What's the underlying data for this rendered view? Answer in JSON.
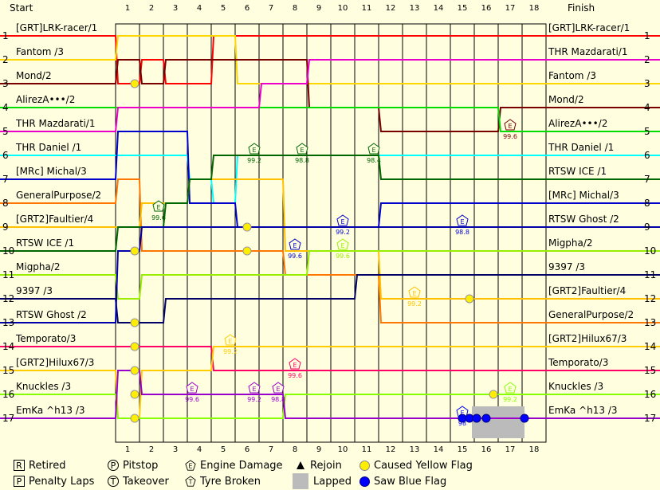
{
  "headers": {
    "start": "Start",
    "finish": "Finish"
  },
  "chart_data": {
    "type": "line",
    "x": [
      1,
      2,
      3,
      4,
      5,
      6,
      7,
      8,
      9,
      10,
      11,
      12,
      13,
      14,
      15,
      16,
      17,
      18
    ],
    "positions": [
      1,
      2,
      3,
      4,
      5,
      6,
      7,
      8,
      9,
      10,
      11,
      12,
      13,
      14,
      15,
      16,
      17
    ],
    "start_order": [
      "[GRT]LRK-racer/1",
      "Fantom /3",
      "Mond/2",
      "AlirezA•••/2",
      "THR Mazdarati/1",
      "THR Daniel /1",
      "[MRc] Michal/3",
      "GeneralPurpose/2",
      "[GRT2]Faultier/4",
      "RTSW ICE /1",
      "Migpha/2",
      "9397 /3",
      "RTSW Ghost /2",
      "Temporato/3",
      "[GRT2]Hilux67/3",
      "Knuckles /3",
      "EmKa ^h13 /3"
    ],
    "finish_order": [
      "[GRT]LRK-racer/1",
      "THR Mazdarati/1",
      "Fantom /3",
      "Mond/2",
      "AlirezA•••/2",
      "THR Daniel /1",
      "RTSW ICE /1",
      "[MRc] Michal/3",
      "RTSW Ghost /2",
      "Migpha/2",
      "9397 /3",
      "[GRT2]Faultier/4",
      "GeneralPurpose/2",
      "[GRT2]Hilux67/3",
      "Temporato/3",
      "Knuckles /3",
      "EmKa ^h13 /3"
    ],
    "series": [
      {
        "name": "[GRT]LRK-racer/1",
        "color": "#ff0000",
        "positions": [
          1,
          3,
          2,
          3,
          3,
          1,
          1,
          1,
          1,
          1,
          1,
          1,
          1,
          1,
          1,
          1,
          1,
          1
        ]
      },
      {
        "name": "Fantom /3",
        "color": "#ffd700",
        "positions": [
          2,
          1,
          1,
          1,
          1,
          1,
          3,
          3,
          3,
          3,
          3,
          3,
          3,
          3,
          3,
          3,
          3,
          3
        ]
      },
      {
        "name": "Mond/2",
        "color": "#7a0000",
        "positions": [
          3,
          2,
          3,
          2,
          2,
          2,
          2,
          2,
          2,
          4,
          4,
          4,
          5,
          5,
          5,
          5,
          5,
          4
        ]
      },
      {
        "name": "AlirezA•••/2",
        "color": "#00dd00",
        "positions": [
          4,
          4,
          4,
          4,
          4,
          4,
          4,
          4,
          4,
          4,
          4,
          4,
          4,
          4,
          4,
          4,
          4,
          5
        ]
      },
      {
        "name": "THR Mazdarati/1",
        "color": "#ee00cc",
        "positions": [
          5,
          4,
          4,
          4,
          4,
          4,
          4,
          3,
          3,
          2,
          2,
          2,
          2,
          2,
          2,
          2,
          2,
          2
        ]
      },
      {
        "name": "THR Daniel /1",
        "color": "#00ffff",
        "positions": [
          6,
          6,
          6,
          6,
          7,
          8,
          6,
          6,
          6,
          6,
          6,
          6,
          6,
          6,
          6,
          6,
          6,
          6
        ]
      },
      {
        "name": "[MRc] Michal/3",
        "color": "#0000cc",
        "positions": [
          7,
          5,
          5,
          5,
          8,
          8,
          9,
          9,
          9,
          9,
          9,
          9,
          8,
          8,
          8,
          8,
          8,
          8
        ]
      },
      {
        "name": "GeneralPurpose/2",
        "color": "#ff7700",
        "positions": [
          8,
          7,
          10,
          10,
          10,
          10,
          10,
          10,
          11,
          11,
          11,
          11,
          13,
          13,
          13,
          13,
          13,
          13
        ]
      },
      {
        "name": "[GRT2]Faultier/4",
        "color": "#ffc000",
        "positions": [
          9,
          9,
          8,
          8,
          7,
          7,
          7,
          7,
          10,
          10,
          10,
          10,
          12,
          12,
          12,
          12,
          12,
          12
        ]
      },
      {
        "name": "RTSW ICE /1",
        "color": "#006600",
        "positions": [
          10,
          9,
          9,
          8,
          7,
          6,
          6,
          6,
          6,
          6,
          6,
          6,
          7,
          7,
          7,
          7,
          7,
          7
        ]
      },
      {
        "name": "Migpha/2",
        "color": "#99ee00",
        "positions": [
          11,
          12,
          11,
          11,
          11,
          11,
          11,
          11,
          11,
          10,
          10,
          10,
          10,
          10,
          10,
          10,
          10,
          10
        ]
      },
      {
        "name": "9397 /3",
        "color": "#000066",
        "positions": [
          12,
          13,
          13,
          12,
          12,
          12,
          12,
          12,
          12,
          12,
          12,
          11,
          11,
          11,
          11,
          11,
          11,
          11
        ]
      },
      {
        "name": "RTSW Ghost /2",
        "color": "#0000aa",
        "positions": [
          13,
          10,
          9,
          9,
          9,
          9,
          9,
          9,
          9,
          9,
          9,
          9,
          9,
          9,
          9,
          9,
          9,
          9
        ]
      },
      {
        "name": "Temporato/3",
        "color": "#ff0066",
        "positions": [
          14,
          14,
          14,
          14,
          14,
          15,
          15,
          15,
          15,
          15,
          15,
          15,
          15,
          15,
          15,
          15,
          15,
          15
        ]
      },
      {
        "name": "[GRT2]Hilux67/3",
        "color": "#ffcc00",
        "positions": [
          15,
          17,
          15,
          15,
          15,
          14,
          14,
          14,
          14,
          14,
          14,
          14,
          14,
          14,
          14,
          14,
          14,
          14
        ]
      },
      {
        "name": "Knuckles /3",
        "color": "#88ff00",
        "positions": [
          16,
          17,
          17,
          17,
          17,
          17,
          17,
          17,
          16,
          16,
          16,
          16,
          16,
          16,
          16,
          16,
          16,
          16
        ]
      },
      {
        "name": "EmKa ^h13 /3",
        "color": "#9900cc",
        "positions": [
          17,
          15,
          16,
          16,
          16,
          16,
          16,
          16,
          17,
          17,
          17,
          17,
          17,
          17,
          17,
          17,
          17,
          17
        ]
      }
    ],
    "annotations": [
      {
        "type": "engine-damage",
        "lap": 6.3,
        "pos": 6,
        "label": "99.2",
        "color": "#006600"
      },
      {
        "type": "engine-damage",
        "lap": 8.3,
        "pos": 6,
        "label": "98.8",
        "color": "#006600"
      },
      {
        "type": "engine-damage",
        "lap": 11.3,
        "pos": 6,
        "label": "98.4",
        "color": "#006600"
      },
      {
        "type": "engine-damage",
        "lap": 2.3,
        "pos": 8.4,
        "label": "99.6",
        "color": "#006600"
      },
      {
        "type": "engine-damage",
        "lap": 17.0,
        "pos": 5,
        "label": "99.6",
        "color": "#7a0000"
      },
      {
        "type": "engine-damage",
        "lap": 10.0,
        "pos": 9,
        "label": "99.2",
        "color": "#0000cc"
      },
      {
        "type": "engine-damage",
        "lap": 15.0,
        "pos": 9,
        "label": "98.8",
        "color": "#0000cc"
      },
      {
        "type": "engine-damage",
        "lap": 8.0,
        "pos": 10,
        "label": "99.6",
        "color": "#0000cc"
      },
      {
        "type": "engine-damage",
        "lap": 10.0,
        "pos": 10,
        "label": "99.6",
        "color": "#99ee00"
      },
      {
        "type": "engine-damage",
        "lap": 13.0,
        "pos": 12,
        "label": "99.2",
        "color": "#ffc000"
      },
      {
        "type": "engine-damage",
        "lap": 5.3,
        "pos": 14,
        "label": "99.2",
        "color": "#ffcc00"
      },
      {
        "type": "engine-damage",
        "lap": 8.0,
        "pos": 15,
        "label": "99.6",
        "color": "#ff0066"
      },
      {
        "type": "engine-damage",
        "lap": 3.7,
        "pos": 16,
        "label": "99.6",
        "color": "#9900cc"
      },
      {
        "type": "engine-damage",
        "lap": 6.3,
        "pos": 16,
        "label": "99.2",
        "color": "#9900cc"
      },
      {
        "type": "engine-damage",
        "lap": 7.3,
        "pos": 16,
        "label": "98.8",
        "color": "#9900cc"
      },
      {
        "type": "engine-damage",
        "lap": 17.0,
        "pos": 16,
        "label": "99.2",
        "color": "#88ff00"
      },
      {
        "type": "engine-damage",
        "lap": 15.0,
        "pos": 17,
        "label": "98",
        "color": "#0000ff"
      }
    ],
    "yellow_flags": [
      {
        "lap": 1.3,
        "pos": 3
      },
      {
        "lap": 6.0,
        "pos": 9
      },
      {
        "lap": 6.0,
        "pos": 10
      },
      {
        "lap": 1.3,
        "pos": 10
      },
      {
        "lap": 1.3,
        "pos": 13
      },
      {
        "lap": 1.3,
        "pos": 14
      },
      {
        "lap": 1.3,
        "pos": 15
      },
      {
        "lap": 1.3,
        "pos": 16
      },
      {
        "lap": 1.3,
        "pos": 17
      },
      {
        "lap": 15.3,
        "pos": 12
      },
      {
        "lap": 16.3,
        "pos": 16
      }
    ],
    "blue_flags": [
      {
        "lap": 15.0,
        "pos": 17
      },
      {
        "lap": 15.3,
        "pos": 17
      },
      {
        "lap": 15.6,
        "pos": 17
      },
      {
        "lap": 16.0,
        "pos": 17
      },
      {
        "lap": 17.6,
        "pos": 17
      }
    ],
    "lapped": [
      {
        "from": 15.4,
        "to": 17.6,
        "pos": 17
      }
    ]
  },
  "legend": {
    "retired": "Retired",
    "penalty": "Penalty Laps",
    "pitstop": "Pitstop",
    "takeover": "Takeover",
    "engine": "Engine Damage",
    "tyre": "Tyre Broken",
    "rejoin": "Rejoin",
    "lapped": "Lapped",
    "yellow": "Caused Yellow Flag",
    "blue": "Saw Blue Flag",
    "icon_r": "R",
    "icon_p": "P",
    "icon_pit": "P",
    "icon_t": "T"
  }
}
